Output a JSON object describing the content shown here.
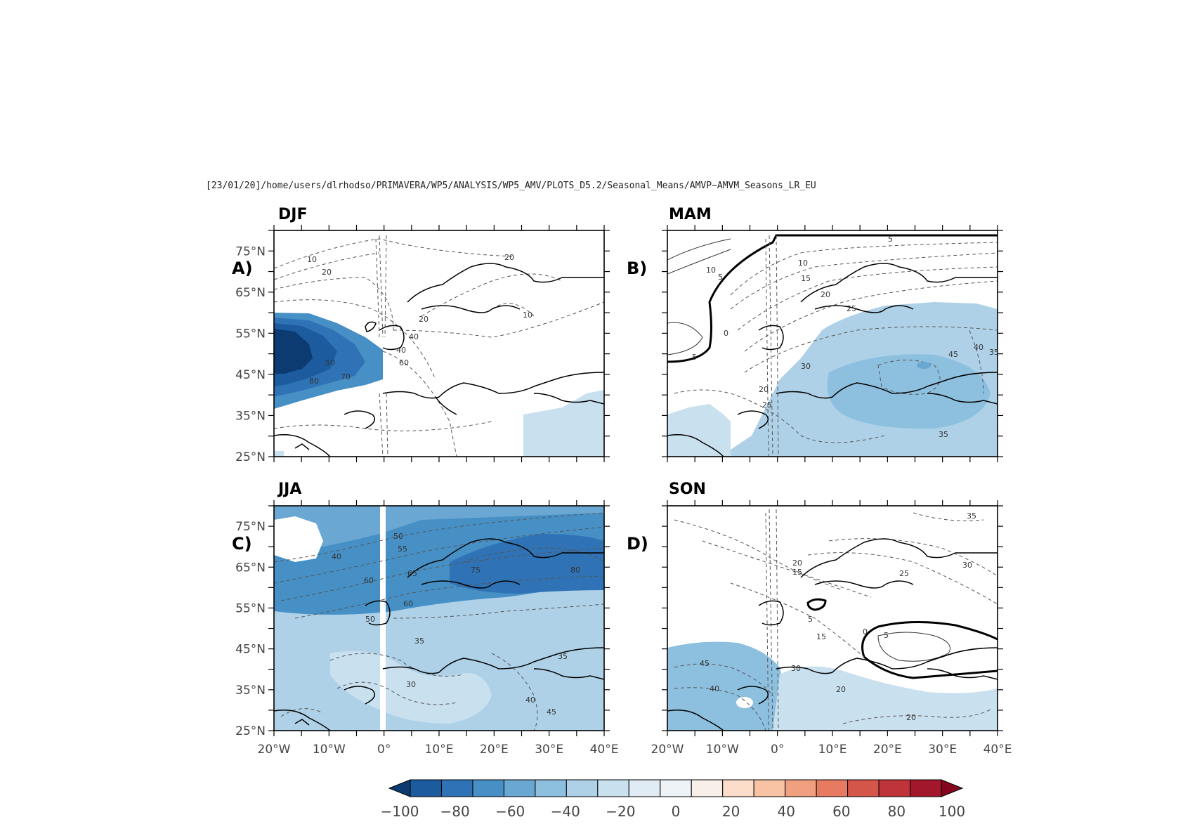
{
  "header_path": "[23/01/20]/home/users/dlrhodso/PRIMAVERA/WP5/ANALYSIS/WP5_AMV/PLOTS_D5.2/Seasonal_Means/AMVP−AMVM_Seasons_LR_EU",
  "panels": [
    {
      "id": "A",
      "season": "DJF",
      "label": "A)"
    },
    {
      "id": "B",
      "season": "MAM",
      "label": "B)"
    },
    {
      "id": "C",
      "season": "JJA",
      "label": "C)"
    },
    {
      "id": "D",
      "season": "SON",
      "label": "D)"
    }
  ],
  "axes": {
    "lat_labels": [
      "75°N",
      "65°N",
      "55°N",
      "45°N",
      "35°N",
      "25°N"
    ],
    "lon_labels": [
      "20°W",
      "10°W",
      "0°",
      "10°E",
      "20°E",
      "30°E",
      "40°E"
    ]
  },
  "colorbar": {
    "labels": [
      "−100",
      "−80",
      "−60",
      "−40",
      "−20",
      "0",
      "20",
      "40",
      "60",
      "80",
      "100"
    ],
    "colors": [
      "#0b3b70",
      "#1c5c9e",
      "#2f73b6",
      "#4690c6",
      "#6aa8d3",
      "#8dbfdf",
      "#aed1e8",
      "#c9e0ef",
      "#dfebf5",
      "#eef3f8",
      "#f8efe9",
      "#fbddc9",
      "#f8c2a5",
      "#f1a07f",
      "#e67b62",
      "#d4564a",
      "#bf343a",
      "#a3172d",
      "#85051f"
    ]
  },
  "panel_fills": {
    "A_atlantic_core": "#0b3b70",
    "B_fill": "#aed1e8",
    "C_fill": "#6aa8d3",
    "D_fill": "#8dbfdf"
  },
  "contour_labels": {
    "A": [
      "10",
      "20",
      "20",
      "40",
      "60",
      "80",
      "70",
      "20",
      "50",
      "40",
      "10"
    ],
    "B": [
      "10",
      "5",
      "0",
      "5",
      "5",
      "10",
      "15",
      "20",
      "25",
      "30",
      "20",
      "25",
      "40",
      "45",
      "35",
      "35"
    ],
    "C": [
      "50",
      "55",
      "40",
      "60",
      "65",
      "75",
      "80",
      "60",
      "50",
      "35",
      "35",
      "30",
      "40",
      "45"
    ],
    "D": [
      "35",
      "20",
      "15",
      "30",
      "25",
      "5",
      "15",
      "0",
      "5",
      "45",
      "40",
      "30",
      "20",
      "20"
    ]
  }
}
